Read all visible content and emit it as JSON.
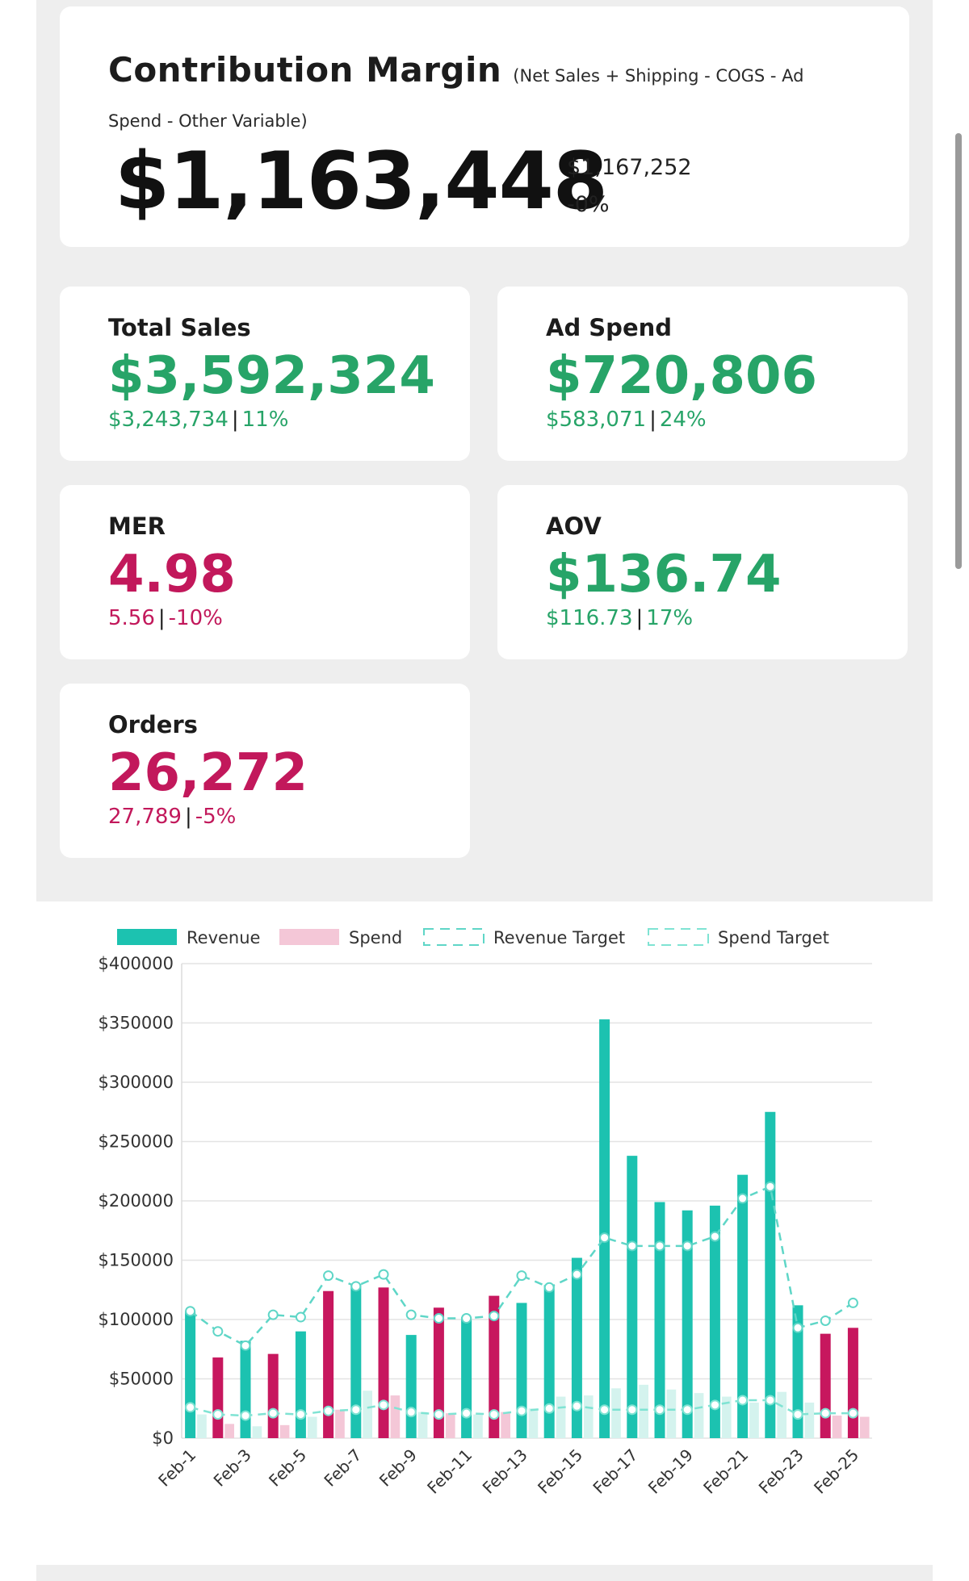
{
  "contribution_margin": {
    "title": "Contribution Margin",
    "formula_part1": "(Net Sales + Shipping - COGS - Ad",
    "formula_part2": "Spend - Other Variable)",
    "value": "$1,163,448",
    "previous": "$1,167,252",
    "change": "-0%"
  },
  "metrics": {
    "total_sales": {
      "label": "Total Sales",
      "value": "$3,592,324",
      "previous": "$3,243,734",
      "change": "11%",
      "color": "#27a468"
    },
    "ad_spend": {
      "label": "Ad Spend",
      "value": "$720,806",
      "previous": "$583,071",
      "change": "24%",
      "color": "#27a468"
    },
    "mer": {
      "label": "MER",
      "value": "4.98",
      "previous": "5.56",
      "change": "-10%",
      "color": "#c2185b"
    },
    "aov": {
      "label": "AOV",
      "value": "$136.74",
      "previous": "$116.73",
      "change": "17%",
      "color": "#27a468"
    },
    "orders": {
      "label": "Orders",
      "value": "26,272",
      "previous": "27,789",
      "change": "-5%",
      "color": "#c2185b"
    }
  },
  "chart_data": {
    "type": "bar",
    "legend": [
      "Revenue",
      "Spend",
      "Revenue Target",
      "Spend Target"
    ],
    "legend_position": "top",
    "ylim": [
      0,
      400000
    ],
    "yticks": [
      "$0",
      "$50000",
      "$100000",
      "$150000",
      "$200000",
      "$250000",
      "$300000",
      "$350000",
      "$400000"
    ],
    "grid": true,
    "categories": [
      "Feb-1",
      "Feb-2",
      "Feb-3",
      "Feb-4",
      "Feb-5",
      "Feb-6",
      "Feb-7",
      "Feb-8",
      "Feb-9",
      "Feb-10",
      "Feb-11",
      "Feb-12",
      "Feb-13",
      "Feb-14",
      "Feb-15",
      "Feb-16",
      "Feb-17",
      "Feb-18",
      "Feb-19",
      "Feb-20",
      "Feb-21",
      "Feb-22",
      "Feb-23",
      "Feb-24",
      "Feb-25"
    ],
    "x_tick_labels": [
      "Feb-1",
      "Feb-3",
      "Feb-5",
      "Feb-7",
      "Feb-9",
      "Feb-11",
      "Feb-13",
      "Feb-15",
      "Feb-17",
      "Feb-19",
      "Feb-21",
      "Feb-23",
      "Feb-25"
    ],
    "series": [
      {
        "name": "Revenue",
        "values": [
          107000,
          68000,
          82000,
          71000,
          90000,
          124000,
          130000,
          127000,
          87000,
          110000,
          102000,
          120000,
          114000,
          129000,
          152000,
          353000,
          238000,
          199000,
          192000,
          196000,
          222000,
          275000,
          112000,
          88000,
          93000
        ]
      },
      {
        "name": "Spend",
        "values": [
          20000,
          12000,
          10000,
          11000,
          18000,
          24000,
          40000,
          36000,
          22000,
          21000,
          20000,
          22000,
          25000,
          35000,
          36000,
          42000,
          45000,
          41000,
          38000,
          35000,
          30000,
          39000,
          30000,
          19000,
          18000
        ]
      },
      {
        "name": "Revenue Target",
        "values": [
          107000,
          90000,
          78000,
          104000,
          102000,
          137000,
          128000,
          138000,
          104000,
          101000,
          101000,
          103000,
          137000,
          127000,
          138000,
          169000,
          162000,
          162000,
          162000,
          170000,
          202000,
          212000,
          93000,
          99000,
          114000
        ]
      },
      {
        "name": "Spend Target",
        "values": [
          26000,
          20000,
          19000,
          21000,
          20000,
          23000,
          24000,
          28000,
          22000,
          20000,
          21000,
          20000,
          23000,
          25000,
          27000,
          24000,
          24000,
          24000,
          24000,
          28000,
          32000,
          32000,
          20000,
          21000,
          21000
        ]
      }
    ],
    "colors": {
      "revenue": "#1cc2b0",
      "spend_light": "#f4c7d7",
      "spend_dark": "#c7175e",
      "revenue_target": "#5fd6c7",
      "spend_target": "#7fe3d3",
      "spend_bg": "#d4f3ee"
    }
  }
}
